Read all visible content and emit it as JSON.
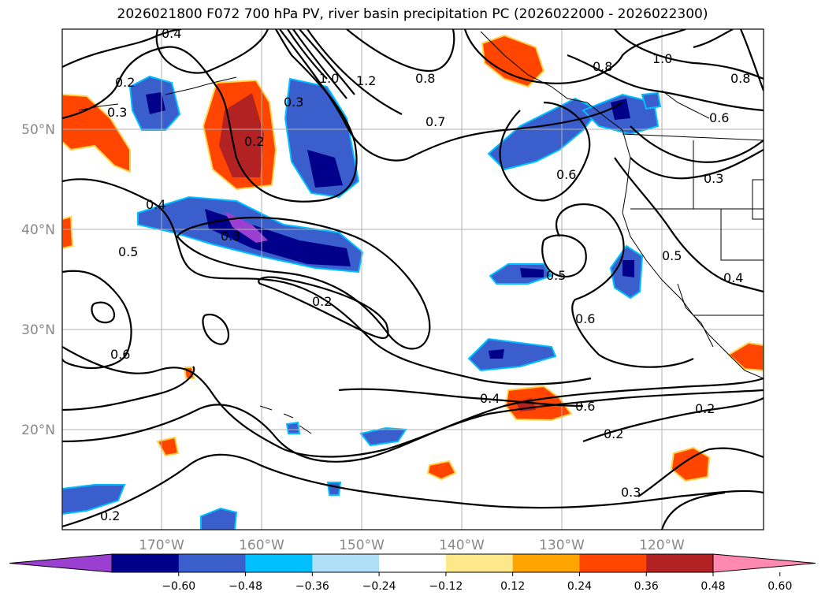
{
  "title": "2026021800 F072 700 hPa PV, river basin precipitation PC (2026022000 - 2026022300)",
  "map": {
    "lon_range": [
      -180,
      -110
    ],
    "lat_range": [
      10,
      60
    ],
    "lon_ticks": [
      "170°W",
      "160°W",
      "150°W",
      "140°W",
      "130°W",
      "120°W"
    ],
    "lat_ticks": [
      "50°N",
      "40°N",
      "30°N",
      "20°N"
    ],
    "grid": true
  },
  "contour_labels": [
    "0.4",
    "0.2",
    "0.3",
    "1.0",
    "1.2",
    "0.8",
    "0.8",
    "1.0",
    "0.8",
    "0.7",
    "0.6",
    "0.6",
    "0.2",
    "0.3",
    "0.4",
    "0.3",
    "0.5",
    "0.6",
    "0.2",
    "0.5",
    "0.5",
    "0.6",
    "0.4",
    "0.3",
    "0.2",
    "0.2",
    "0.3",
    "0.2",
    "0.4",
    "0.6"
  ],
  "colorbar": {
    "ticks": [
      "−0.60",
      "−0.48",
      "−0.36",
      "−0.24",
      "−0.12",
      "0.12",
      "0.24",
      "0.36",
      "0.48",
      "0.60"
    ],
    "colors": [
      "#9a3fcf",
      "#00008b",
      "#3a5fcd",
      "#00bfff",
      "#b0e0f7",
      "#ffffff",
      "#ffe88a",
      "#ffa500",
      "#ff4500",
      "#b22222",
      "#ff89b0"
    ],
    "extend": "both"
  }
}
